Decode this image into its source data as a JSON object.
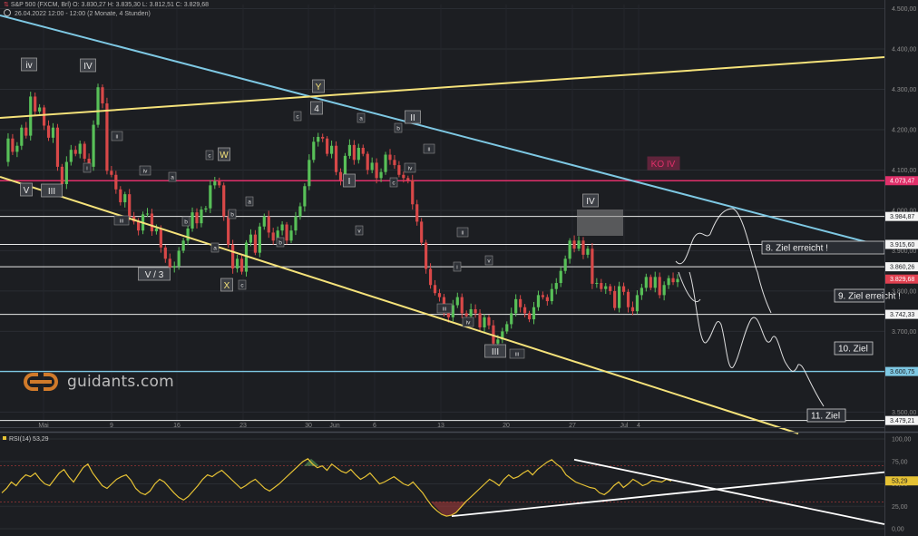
{
  "header": {
    "line1": "S&P 500 (FXCM, Brl)  O: 3.830,27  H: 3.835,30  L: 3.812,51  C: 3.829,68",
    "line2": "26.04.2022 12:00 - 12:00   (2 Monate, 4 Stunden)"
  },
  "watermark": "guidants.com",
  "colors": {
    "background": "#1c1e22",
    "price": "#e8e8e8",
    "up_candle": "#58c058",
    "down_candle": "#d84848",
    "channel_blue": "#7ec8e3",
    "channel_yellow": "#f5e27a",
    "ko_line": "#e0306a",
    "rsi": "#e6c234"
  },
  "chart_data": [
    {
      "type": "candlestick",
      "instrument": "S&P 500 (FXCM, Brl)",
      "timeframe": "4 Stunden",
      "ohlc_last": {
        "open": 3830.27,
        "high": 3835.3,
        "low": 3812.51,
        "close": 3829.68
      },
      "x_ticks": [
        "Mai",
        "9",
        "16",
        "23",
        "30",
        "Jun",
        "6",
        "13",
        "20",
        "27",
        "Jul",
        "4"
      ],
      "y_ticks": [
        "4.500,00",
        "4.400,00",
        "4.300,00",
        "4.200,00",
        "4.100,00",
        "4.000,00",
        "3.900,00",
        "3.800,00",
        "3.700,00",
        "3.600,00",
        "3.500,00"
      ],
      "ylim": [
        3465,
        4510
      ],
      "price_path": [
        4120,
        4178,
        4145,
        4160,
        4205,
        4185,
        4282,
        4245,
        4255,
        4210,
        4180,
        4205,
        4108,
        4065,
        4120,
        4150,
        4140,
        4165,
        4128,
        4108,
        4212,
        4305,
        4265,
        4098,
        4088,
        4052,
        4020,
        4040,
        3985,
        3972,
        3950,
        3990,
        3992,
        3948,
        3955,
        3908,
        3880,
        3858,
        3862,
        3900,
        3925,
        3955,
        3995,
        3968,
        4002,
        4005,
        4062,
        4072,
        4062,
        3985,
        3915,
        3856,
        3880,
        3848,
        3920,
        3940,
        3895,
        3960,
        3985,
        3945,
        3925,
        3950,
        3965,
        3925,
        3950,
        3985,
        4010,
        4060,
        4125,
        4170,
        4182,
        4178,
        4140,
        4160,
        4095,
        4075,
        4135,
        4162,
        4125,
        4155,
        4140,
        4100,
        4118,
        4080,
        4095,
        4138,
        4125,
        4112,
        4088,
        4080,
        4075,
        4015,
        3972,
        3920,
        3855,
        3815,
        3795,
        3785,
        3745,
        3735,
        3765,
        3785,
        3745,
        3738,
        3755,
        3745,
        3710,
        3735,
        3715,
        3670,
        3680,
        3700,
        3718,
        3745,
        3780,
        3760,
        3745,
        3730,
        3760,
        3790,
        3785,
        3775,
        3805,
        3820,
        3850,
        3880,
        3925,
        3905,
        3925,
        3890,
        3905,
        3818,
        3820,
        3805,
        3812,
        3800,
        3758,
        3812,
        3798,
        3760,
        3750,
        3790,
        3808,
        3835,
        3808,
        3835,
        3790,
        3815,
        3832,
        3822,
        3830
      ],
      "horizontal_levels": [
        {
          "value": 4073.47,
          "label": "4.073,47",
          "color": "#e0306a"
        },
        {
          "value": 3984.87,
          "label": "3.984,87",
          "color": "#ffffff"
        },
        {
          "value": 3915.6,
          "label": "3.915,60",
          "color": "#ffffff"
        },
        {
          "value": 3860.26,
          "label": "3.860,26",
          "color": "#ffffff"
        },
        {
          "value": 3829.68,
          "label": "3.829,68",
          "color": "#e04050"
        },
        {
          "value": 3742.33,
          "label": "3.742,33",
          "color": "#ffffff"
        },
        {
          "value": 3600.75,
          "label": "3.600,75",
          "color": "#7ec8e3"
        },
        {
          "value": 3479.21,
          "label": "3.479,21",
          "color": "#ffffff"
        }
      ],
      "targets": [
        "8. Ziel  erreicht !",
        "9. Ziel  erreicht !",
        "10. Ziel",
        "11. Ziel"
      ],
      "ko_label": "KO IV",
      "wave_labels_large": [
        "iv",
        "IV",
        "V",
        "III",
        "V / 3",
        "W",
        "X",
        "Y",
        "4",
        "I",
        "II",
        "IV",
        "III"
      ],
      "wave_labels_small": [
        "ii",
        "iii",
        "iv",
        "a",
        "b",
        "c",
        "a",
        "b",
        "c",
        "a",
        "b",
        "c",
        "a",
        "b",
        "c",
        "i",
        "ii",
        "iii",
        "iv",
        "v",
        "i",
        "ii",
        "iii",
        "iv",
        "v"
      ]
    },
    {
      "type": "line",
      "indicator": "RSI(14)",
      "value": 53.29,
      "title": "RSI(14)  53,29",
      "y_ticks": [
        "100,00",
        "75,00",
        "50,00",
        "25,00",
        "0,00"
      ],
      "ylim": [
        0,
        100
      ],
      "overbought": 70,
      "oversold": 30,
      "values": [
        40,
        45,
        52,
        48,
        55,
        60,
        58,
        62,
        55,
        50,
        48,
        55,
        62,
        66,
        58,
        52,
        60,
        68,
        72,
        62,
        55,
        48,
        45,
        50,
        55,
        58,
        60,
        54,
        45,
        40,
        38,
        42,
        50,
        55,
        52,
        46,
        40,
        35,
        32,
        36,
        42,
        48,
        55,
        60,
        58,
        62,
        65,
        60,
        55,
        50,
        45,
        48,
        52,
        55,
        50,
        45,
        42,
        46,
        50,
        55,
        60,
        65,
        70,
        75,
        78,
        72,
        68,
        70,
        65,
        72,
        68,
        64,
        62,
        66,
        60,
        55,
        58,
        62,
        56,
        50,
        52,
        55,
        58,
        54,
        50,
        48,
        52,
        46,
        40,
        32,
        25,
        20,
        16,
        14,
        15,
        18,
        24,
        30,
        35,
        40,
        45,
        50,
        55,
        52,
        48,
        55,
        60,
        56,
        58,
        62,
        65,
        60,
        66,
        70,
        74,
        77,
        72,
        68,
        60,
        56,
        52,
        50,
        48,
        46,
        45,
        40,
        38,
        42,
        48,
        52,
        46,
        50,
        55,
        52,
        48,
        50,
        54,
        53,
        52,
        55,
        53
      ]
    }
  ]
}
